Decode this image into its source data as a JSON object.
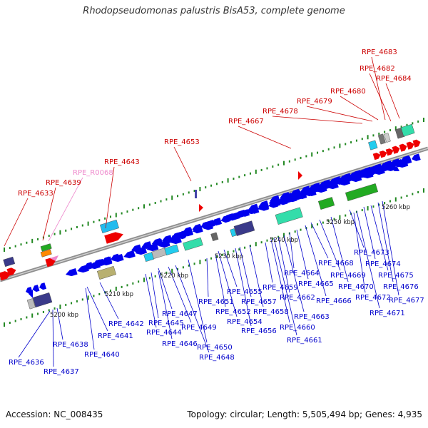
{
  "title": "Rhodopseudomonas palustris BisA53, complete genome",
  "footer": {
    "accession": "Accession: NC_008435",
    "summary": "Topology: circular; Length: 5,505,494 bp; Genes: 4,935"
  },
  "colors": {
    "plus_label": "#cc0000",
    "minus_label": "#0000cc",
    "rna_label": "#ee88cc",
    "plus_gene": "#ee0000",
    "minus_gene": "#0000ee",
    "axis": "#999999",
    "tick": "#228822"
  },
  "scale_labels": [
    "5200 kbp",
    "5210 kbp",
    "5220 kbp",
    "5230 kbp",
    "5240 kbp",
    "5250 kbp",
    "5260 kbp"
  ],
  "top_labels": [
    "RPE_4633",
    "RPE_4639",
    "RPE_R0068",
    "RPE_4643",
    "RPE_4653",
    "RPE_4667",
    "RPE_4678",
    "RPE_4679",
    "RPE_4680",
    "RPE_4682",
    "RPE_4683",
    "RPE_4684"
  ],
  "bottom_labels": [
    "RPE_4636",
    "RPE_4637",
    "RPE_4638",
    "RPE_4640",
    "RPE_4641",
    "RPE_4642",
    "RPE_4644",
    "RPE_4645",
    "RPE_4646",
    "RPE_4647",
    "RPE_4648",
    "RPE_4649",
    "RPE_4650",
    "RPE_4651",
    "RPE_4652",
    "RPE_4654",
    "RPE_4655",
    "RPE_4656",
    "RPE_4657",
    "RPE_4658",
    "RPE_4659",
    "RPE_4660",
    "RPE_4661",
    "RPE_4662",
    "RPE_4663",
    "RPE_4664",
    "RPE_4665",
    "RPE_4666",
    "RPE_4668",
    "RPE_4669",
    "RPE_4670",
    "RPE_4671",
    "RPE_4672",
    "RPE_4673",
    "RPE_4674",
    "RPE_4675",
    "RPE_4676",
    "RPE_4677"
  ]
}
